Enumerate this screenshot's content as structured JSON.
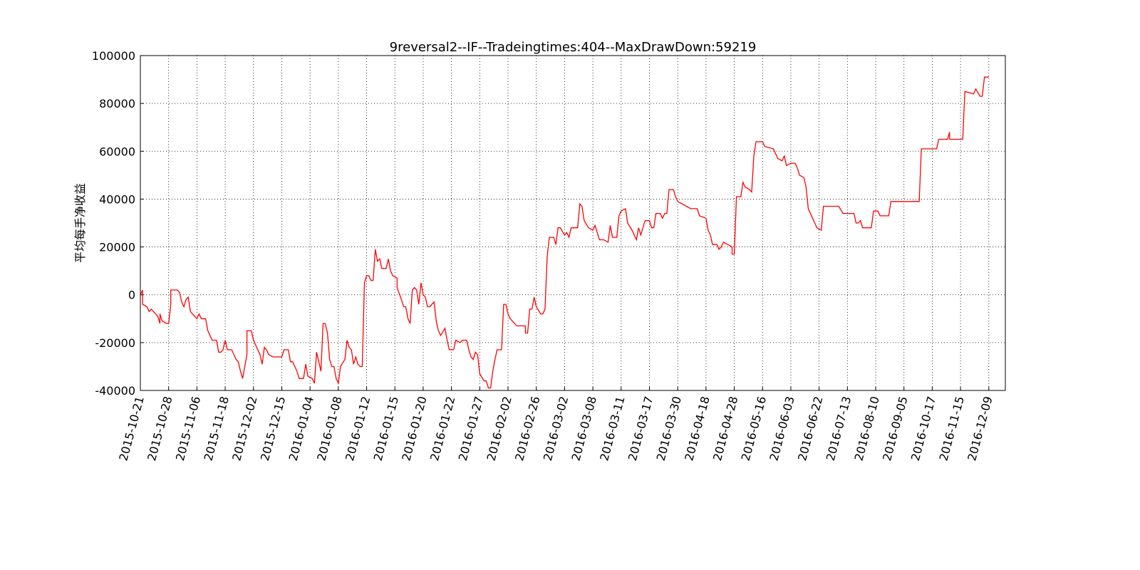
{
  "chart_data": {
    "type": "line",
    "title": "9reversal2--IF--Tradeingtimes:404--MaxDrawDown:59219",
    "y_label": "平均每手净收益",
    "color": "#ff0000",
    "grid": true,
    "xlim": [
      0,
      397.6
    ],
    "ylim": [
      -40000,
      100000
    ],
    "yticks": [
      -40000,
      -20000,
      0,
      20000,
      40000,
      60000,
      80000,
      100000
    ],
    "xticks": [
      {
        "value": 0,
        "label": "2015-10-21"
      },
      {
        "value": 13,
        "label": "2015-10-28"
      },
      {
        "value": 26,
        "label": "2015-11-06"
      },
      {
        "value": 39,
        "label": "2015-11-18"
      },
      {
        "value": 52,
        "label": "2015-12-02"
      },
      {
        "value": 65,
        "label": "2015-12-15"
      },
      {
        "value": 78,
        "label": "2016-01-04"
      },
      {
        "value": 91,
        "label": "2016-01-08"
      },
      {
        "value": 104,
        "label": "2016-01-12"
      },
      {
        "value": 117,
        "label": "2016-01-15"
      },
      {
        "value": 130,
        "label": "2016-01-20"
      },
      {
        "value": 143,
        "label": "2016-01-22"
      },
      {
        "value": 156,
        "label": "2016-01-27"
      },
      {
        "value": 169,
        "label": "2016-02-02"
      },
      {
        "value": 182,
        "label": "2016-02-26"
      },
      {
        "value": 195,
        "label": "2016-03-02"
      },
      {
        "value": 208,
        "label": "2016-03-08"
      },
      {
        "value": 221,
        "label": "2016-03-11"
      },
      {
        "value": 234,
        "label": "2016-03-17"
      },
      {
        "value": 247,
        "label": "2016-03-30"
      },
      {
        "value": 260,
        "label": "2016-04-18"
      },
      {
        "value": 273,
        "label": "2016-04-28"
      },
      {
        "value": 286,
        "label": "2016-05-16"
      },
      {
        "value": 299,
        "label": "2016-06-03"
      },
      {
        "value": 312,
        "label": "2016-06-22"
      },
      {
        "value": 325,
        "label": "2016-07-13"
      },
      {
        "value": 338,
        "label": "2016-08-10"
      },
      {
        "value": 351,
        "label": "2016-09-05"
      },
      {
        "value": 364,
        "label": "2016-10-17"
      },
      {
        "value": 377,
        "label": "2016-11-15"
      },
      {
        "value": 390,
        "label": "2016-12-09"
      }
    ],
    "x": [
      0,
      1,
      1,
      3,
      4,
      5,
      6,
      8,
      9,
      9,
      10,
      12,
      13,
      14,
      14,
      17,
      18,
      19,
      20,
      21,
      22,
      23,
      25,
      26,
      27,
      28,
      30,
      31,
      32,
      33,
      35,
      36,
      37,
      38,
      39,
      40,
      42,
      44,
      45,
      46,
      47,
      49,
      49,
      51,
      52,
      53,
      55,
      56,
      57,
      58,
      59,
      61,
      65,
      66,
      68,
      69,
      70,
      72,
      73,
      75,
      76,
      77,
      79,
      80,
      81,
      82,
      83,
      84,
      85,
      86,
      87,
      88,
      89,
      90,
      91,
      92,
      94,
      95,
      96,
      97,
      98,
      99,
      100,
      101,
      102,
      103,
      104,
      105,
      106,
      107,
      108,
      109,
      110,
      111,
      113,
      114,
      115,
      116,
      118,
      118,
      120,
      121,
      122,
      123,
      124,
      125,
      126,
      127,
      128,
      129,
      130,
      131,
      132,
      133,
      135,
      136,
      137,
      138,
      140,
      141,
      142,
      144,
      145,
      147,
      148,
      150,
      151,
      152,
      153,
      154,
      155,
      156,
      158,
      159,
      160,
      161,
      162,
      163,
      164,
      166,
      167,
      168,
      169,
      170,
      171,
      173,
      177,
      177,
      178,
      179,
      180,
      181,
      182,
      184,
      185,
      186,
      187,
      188,
      190,
      191,
      192,
      193,
      195,
      196,
      197,
      198,
      201,
      202,
      203,
      204,
      206,
      208,
      209,
      211,
      213,
      215,
      216,
      217,
      219,
      220,
      221,
      223,
      224,
      226,
      227,
      228,
      229,
      230,
      232,
      234,
      235,
      236,
      237,
      239,
      240,
      241,
      242,
      243,
      245,
      246,
      247,
      249,
      251,
      253,
      256,
      257,
      260,
      261,
      262,
      263,
      265,
      266,
      267,
      268,
      270,
      272,
      272,
      273,
      274,
      276,
      277,
      278,
      280,
      281,
      282,
      283,
      286,
      287,
      291,
      293,
      295,
      296,
      297,
      299,
      301,
      302,
      303,
      305,
      306,
      307,
      309,
      310,
      311,
      313,
      314,
      317,
      321,
      323,
      328,
      329,
      330,
      331,
      332,
      336,
      337,
      339,
      340,
      344,
      345,
      358,
      359,
      366,
      367,
      371,
      372,
      372,
      378,
      379,
      383,
      384,
      386,
      387,
      388,
      390
    ],
    "values": [
      0,
      2000,
      -4000,
      -5000,
      -7000,
      -6000,
      -7000,
      -9000,
      -12000,
      -8000,
      -11000,
      -12000,
      -12000,
      -4000,
      2000,
      2000,
      1000,
      -3000,
      -5000,
      -2000,
      -1000,
      -7000,
      -9000,
      -10000,
      -8000,
      -10000,
      -10000,
      -15000,
      -17000,
      -19000,
      -19000,
      -24000,
      -24000,
      -23000,
      -19000,
      -23000,
      -23000,
      -27000,
      -28000,
      -32000,
      -35000,
      -25000,
      -15000,
      -15000,
      -19000,
      -21000,
      -25000,
      -29000,
      -22000,
      -23000,
      -25000,
      -26000,
      -26000,
      -23000,
      -23000,
      -28000,
      -28000,
      -32000,
      -35000,
      -35000,
      -29000,
      -34000,
      -35000,
      -37000,
      -24000,
      -28000,
      -32000,
      -12000,
      -12000,
      -16000,
      -27000,
      -30000,
      -30000,
      -35000,
      -37000,
      -30000,
      -27000,
      -19000,
      -22000,
      -23000,
      -29000,
      -26000,
      -29000,
      -30000,
      -30000,
      5000,
      8000,
      8000,
      6000,
      6000,
      19000,
      14000,
      15000,
      11000,
      11000,
      15000,
      10000,
      8000,
      7000,
      3000,
      -2000,
      -5000,
      -5000,
      -10000,
      -12000,
      2000,
      3000,
      2000,
      -4000,
      5000,
      0,
      -1000,
      -5000,
      -5000,
      -3000,
      -11000,
      -15000,
      -17000,
      -14000,
      -19000,
      -23000,
      -23000,
      -19000,
      -20000,
      -19000,
      -19000,
      -23000,
      -26000,
      -27000,
      -24000,
      -25000,
      -33000,
      -36000,
      -36000,
      -39000,
      -39000,
      -32000,
      -27000,
      -23000,
      -23000,
      -4000,
      -4000,
      -8000,
      -10000,
      -11000,
      -13000,
      -13000,
      -16000,
      -16000,
      -6000,
      -6000,
      -1000,
      -5000,
      -8000,
      -8000,
      -6000,
      16000,
      24000,
      24000,
      21000,
      28000,
      28000,
      25000,
      26000,
      24000,
      28000,
      28000,
      38000,
      37000,
      31000,
      28000,
      27000,
      29000,
      23000,
      23000,
      22000,
      29000,
      24000,
      24000,
      33000,
      35000,
      36000,
      30000,
      27000,
      25000,
      23000,
      28000,
      25000,
      31000,
      31000,
      28000,
      28000,
      34000,
      34000,
      32000,
      34000,
      34000,
      44000,
      44000,
      41000,
      39000,
      38000,
      37000,
      36000,
      36000,
      33000,
      32000,
      27000,
      25000,
      21000,
      21000,
      19000,
      20000,
      22000,
      21000,
      20000,
      17000,
      17000,
      41000,
      41000,
      47000,
      45000,
      44000,
      43000,
      58000,
      64000,
      64000,
      62000,
      61000,
      57000,
      56000,
      58000,
      54000,
      55000,
      55000,
      53000,
      50000,
      49000,
      45000,
      36000,
      32000,
      30000,
      28000,
      27000,
      37000,
      37000,
      37000,
      34000,
      34000,
      30000,
      30000,
      31000,
      28000,
      28000,
      35000,
      35000,
      33000,
      33000,
      39000,
      39000,
      61000,
      61000,
      65000,
      65000,
      68000,
      65000,
      65000,
      85000,
      84000,
      86000,
      83000,
      83000,
      91000,
      91000
    ]
  }
}
